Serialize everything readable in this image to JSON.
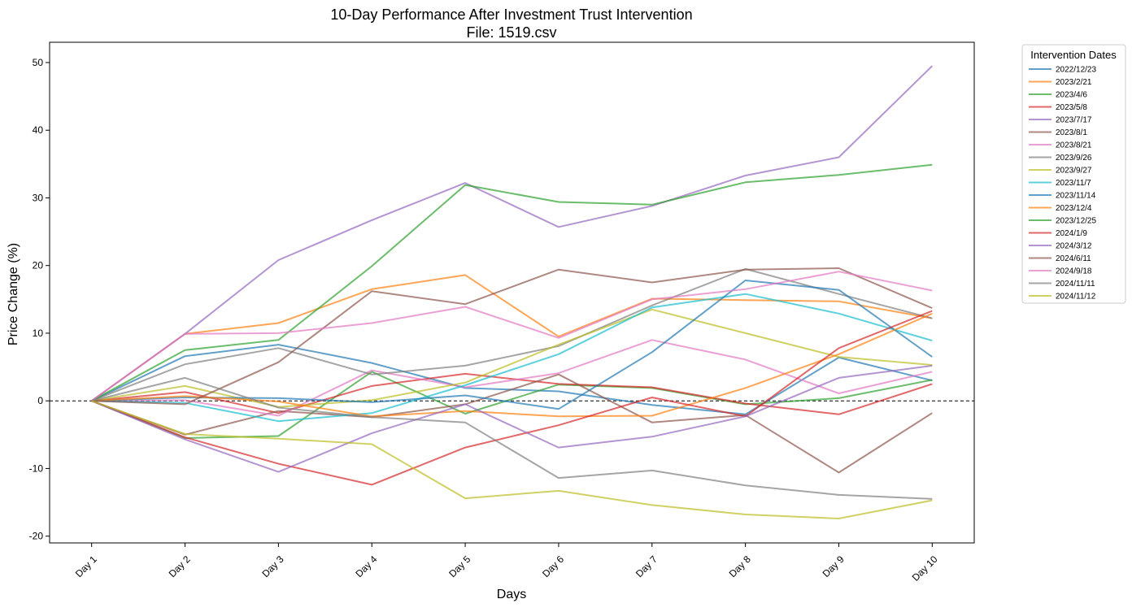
{
  "chart_data": {
    "type": "line",
    "title": "10-Day Performance After Investment Trust Intervention",
    "subtitle": "File: 1519.csv",
    "xlabel": "Days",
    "ylabel": "Price Change (%)",
    "categories": [
      "Day 1",
      "Day 2",
      "Day 3",
      "Day 4",
      "Day 5",
      "Day 6",
      "Day 7",
      "Day 8",
      "Day 9",
      "Day 10"
    ],
    "ylim": [
      -21,
      53
    ],
    "yticks": [
      -20,
      -10,
      0,
      10,
      20,
      30,
      40,
      50
    ],
    "grid": false,
    "zero_line": true,
    "legend": {
      "title": "Intervention Dates",
      "placement": "outside-right"
    },
    "series": [
      {
        "name": "2022/12/23",
        "color": "#1f77b4",
        "values": [
          0,
          6.6,
          8.3,
          5.6,
          1.9,
          1.4,
          -0.6,
          -2.0,
          6.4,
          3.0
        ]
      },
      {
        "name": "2023/2/21",
        "color": "#ff7f0e",
        "values": [
          0,
          9.9,
          11.5,
          16.5,
          18.6,
          9.5,
          15.1,
          14.9,
          14.7,
          12.2
        ]
      },
      {
        "name": "2023/4/6",
        "color": "#2ca02c",
        "values": [
          0,
          -5.5,
          -5.2,
          4.3,
          -1.9,
          2.4,
          1.9,
          -0.5,
          0.4,
          3.1
        ]
      },
      {
        "name": "2023/5/8",
        "color": "#d62728",
        "values": [
          0,
          1.3,
          -1.8,
          2.2,
          4.0,
          2.5,
          2.0,
          -0.4,
          -2.0,
          2.5
        ]
      },
      {
        "name": "2023/7/17",
        "color": "#9467bd",
        "values": [
          0,
          9.9,
          20.8,
          26.7,
          32.2,
          25.7,
          28.8,
          33.3,
          36.0,
          49.5
        ]
      },
      {
        "name": "2023/8/1",
        "color": "#8c564b",
        "values": [
          0,
          -5.0,
          -1.5,
          -2.4,
          -0.5,
          3.9,
          -3.2,
          -2.1,
          -10.6,
          -1.8
        ]
      },
      {
        "name": "2023/8/21",
        "color": "#e377c2",
        "values": [
          0,
          0.1,
          -2.2,
          4.5,
          2.0,
          4.1,
          9.0,
          6.1,
          1.1,
          4.3
        ]
      },
      {
        "name": "2023/9/26",
        "color": "#7f7f7f",
        "values": [
          0,
          5.4,
          7.8,
          3.9,
          5.2,
          8.1,
          14.1,
          19.5,
          15.8,
          12.2
        ]
      },
      {
        "name": "2023/9/27",
        "color": "#bcbd22",
        "values": [
          0,
          2.2,
          -0.9,
          0.1,
          2.7,
          8.3,
          13.5,
          10.0,
          6.5,
          5.3
        ]
      },
      {
        "name": "2023/11/7",
        "color": "#17becf",
        "values": [
          0,
          -0.3,
          -3.0,
          -1.8,
          2.3,
          6.9,
          13.8,
          15.8,
          12.9,
          8.9
        ]
      },
      {
        "name": "2023/11/14",
        "color": "#1f77b4",
        "values": [
          0,
          0.5,
          0.4,
          -0.2,
          0.8,
          -1.2,
          7.2,
          17.8,
          16.4,
          6.5
        ]
      },
      {
        "name": "2023/12/4",
        "color": "#ff7f0e",
        "values": [
          0,
          0.7,
          -0.1,
          -2.3,
          -1.5,
          -2.3,
          -2.2,
          1.9,
          6.9,
          12.9
        ]
      },
      {
        "name": "2023/12/25",
        "color": "#2ca02c",
        "values": [
          0,
          7.5,
          9.0,
          19.9,
          31.9,
          29.4,
          29.0,
          32.3,
          33.4,
          34.9
        ]
      },
      {
        "name": "2024/1/9",
        "color": "#d62728",
        "values": [
          0,
          -5.4,
          -9.3,
          -12.4,
          -6.9,
          -3.6,
          0.5,
          -2.3,
          7.8,
          13.3
        ]
      },
      {
        "name": "2024/3/12",
        "color": "#9467bd",
        "values": [
          0,
          -5.7,
          -10.5,
          -4.8,
          -0.5,
          -6.9,
          -5.3,
          -2.3,
          3.4,
          5.2
        ]
      },
      {
        "name": "2024/6/11",
        "color": "#8c564b",
        "values": [
          0,
          -0.5,
          5.7,
          16.2,
          14.3,
          19.4,
          17.5,
          19.4,
          19.6,
          13.7
        ]
      },
      {
        "name": "2024/9/18",
        "color": "#e377c2",
        "values": [
          0,
          9.9,
          10.0,
          11.5,
          13.9,
          9.3,
          15.0,
          16.5,
          19.1,
          16.3
        ]
      },
      {
        "name": "2024/11/11",
        "color": "#7f7f7f",
        "values": [
          0,
          3.4,
          -1.0,
          -2.4,
          -3.2,
          -11.4,
          -10.3,
          -12.5,
          -13.9,
          -14.5
        ]
      },
      {
        "name": "2024/11/12",
        "color": "#bcbd22",
        "values": [
          0,
          -4.9,
          -5.6,
          -6.4,
          -14.4,
          -13.3,
          -15.4,
          -16.8,
          -17.4,
          -14.7
        ]
      }
    ]
  }
}
